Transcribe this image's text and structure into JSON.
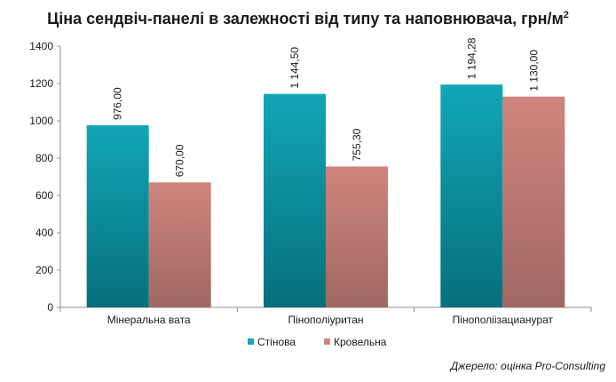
{
  "chart_data": {
    "type": "bar",
    "title_main": "Ціна сендвіч-панелі в залежності від типу та наповнювача, грн/м",
    "title_sup": "2",
    "categories": [
      "Мінеральна вата",
      "Пінополіуритан",
      "Пінополіізацианурат"
    ],
    "series": [
      {
        "name": "Стінова",
        "values": [
          976.0,
          1144.5,
          1194.28
        ],
        "labels": [
          "976,00",
          "1 144,50",
          "1 194,28"
        ],
        "color_top": "#12a6b6",
        "color_bottom": "#06707c"
      },
      {
        "name": "Кровельна",
        "values": [
          670.0,
          755.3,
          1130.0
        ],
        "labels": [
          "670,00",
          "755,30",
          "1 130,00"
        ],
        "color_top": "#cf857c",
        "color_bottom": "#a06862"
      }
    ],
    "yticks": [
      "0",
      "200",
      "400",
      "600",
      "800",
      "1000",
      "1200",
      "1400"
    ],
    "ylim": [
      0,
      1400
    ],
    "legend_position": "bottom"
  },
  "source": "Джерело: оцінка Pro-Consulting"
}
